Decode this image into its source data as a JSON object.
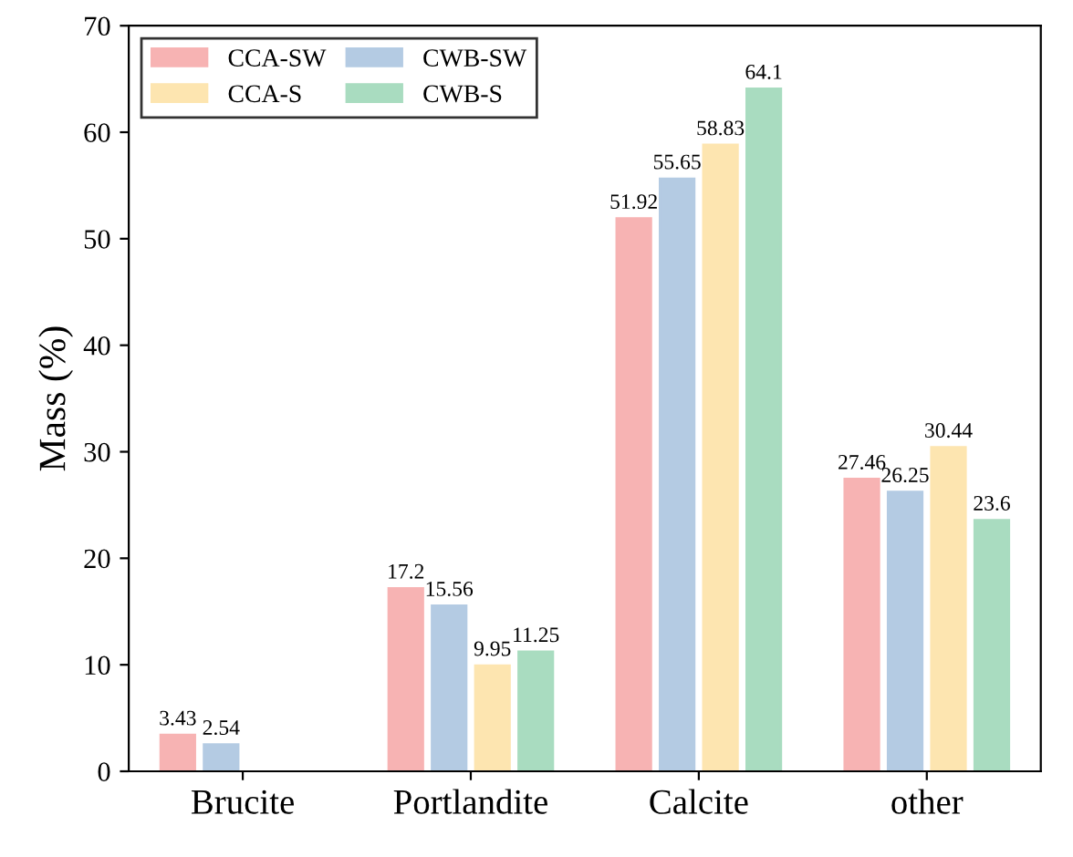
{
  "chart_data": {
    "type": "bar",
    "ylabel": "Mass (%)",
    "categories": [
      "Brucite",
      "Portlandite",
      "Calcite",
      "other"
    ],
    "series": [
      {
        "name": "CCA-SW",
        "color": "#f7b3b3",
        "values": [
          3.43,
          17.2,
          51.92,
          27.46
        ],
        "value_labels": [
          "3.43",
          "17.2",
          "51.92",
          "27.46"
        ]
      },
      {
        "name": "CWB-SW",
        "color": "#b4cbe3",
        "values": [
          2.54,
          15.56,
          55.65,
          26.25
        ],
        "value_labels": [
          "2.54",
          "15.56",
          "55.65",
          "26.25"
        ]
      },
      {
        "name": "CCA-S",
        "color": "#fde5b0",
        "values": [
          null,
          9.95,
          58.83,
          30.44
        ],
        "value_labels": [
          null,
          "9.95",
          "58.83",
          "30.44"
        ]
      },
      {
        "name": "CWB-S",
        "color": "#a9dcc0",
        "values": [
          null,
          11.25,
          64.1,
          23.6
        ],
        "value_labels": [
          null,
          "11.25",
          "64.1",
          "23.6"
        ]
      }
    ],
    "ylim": [
      0,
      70
    ],
    "yticks": [
      0,
      10,
      20,
      30,
      40,
      50,
      60,
      70
    ],
    "grid": false,
    "legend": "top left"
  }
}
